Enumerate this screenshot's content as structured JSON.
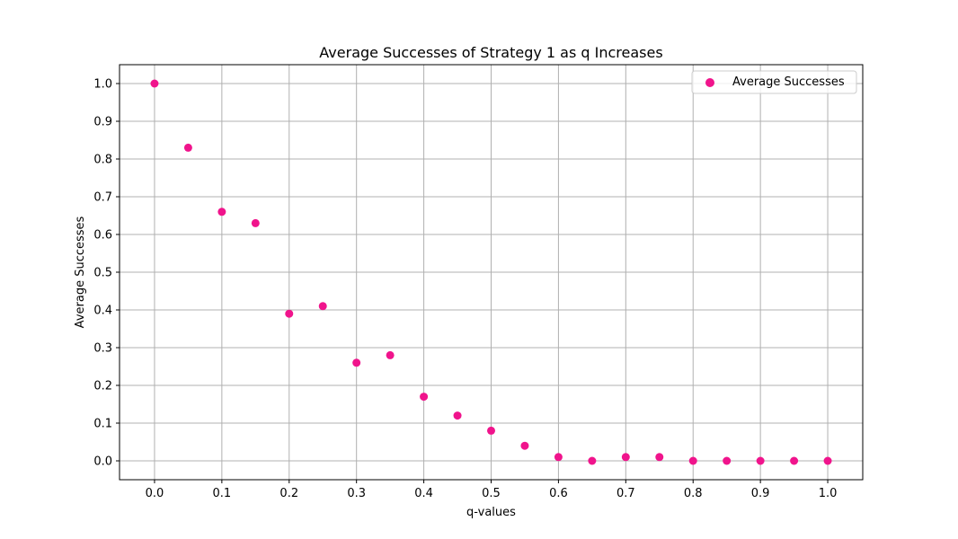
{
  "chart_data": {
    "type": "scatter",
    "title": "Average Successes of Strategy 1 as q Increases",
    "xlabel": "q-values",
    "ylabel": "Average Successes",
    "xlim": [
      -0.052,
      1.052
    ],
    "ylim": [
      -0.05,
      1.05
    ],
    "xticks": [
      "0.0",
      "0.1",
      "0.2",
      "0.3",
      "0.4",
      "0.5",
      "0.6",
      "0.7",
      "0.8",
      "0.9",
      "1.0"
    ],
    "yticks": [
      "0.0",
      "0.1",
      "0.2",
      "0.3",
      "0.4",
      "0.5",
      "0.6",
      "0.7",
      "0.8",
      "0.9",
      "1.0"
    ],
    "grid": true,
    "legend_position": "top-right",
    "series": [
      {
        "name": "Average Successes",
        "color": "#f0148c",
        "x": [
          0.0,
          0.05,
          0.1,
          0.15,
          0.2,
          0.25,
          0.3,
          0.35,
          0.4,
          0.45,
          0.5,
          0.55,
          0.6,
          0.65,
          0.7,
          0.75,
          0.8,
          0.85,
          0.9,
          0.95,
          1.0
        ],
        "y": [
          1.0,
          0.83,
          0.66,
          0.63,
          0.39,
          0.41,
          0.26,
          0.28,
          0.17,
          0.12,
          0.08,
          0.04,
          0.01,
          0.0,
          0.01,
          0.01,
          0.0,
          0.0,
          0.0,
          0.0,
          0.0
        ]
      }
    ]
  }
}
